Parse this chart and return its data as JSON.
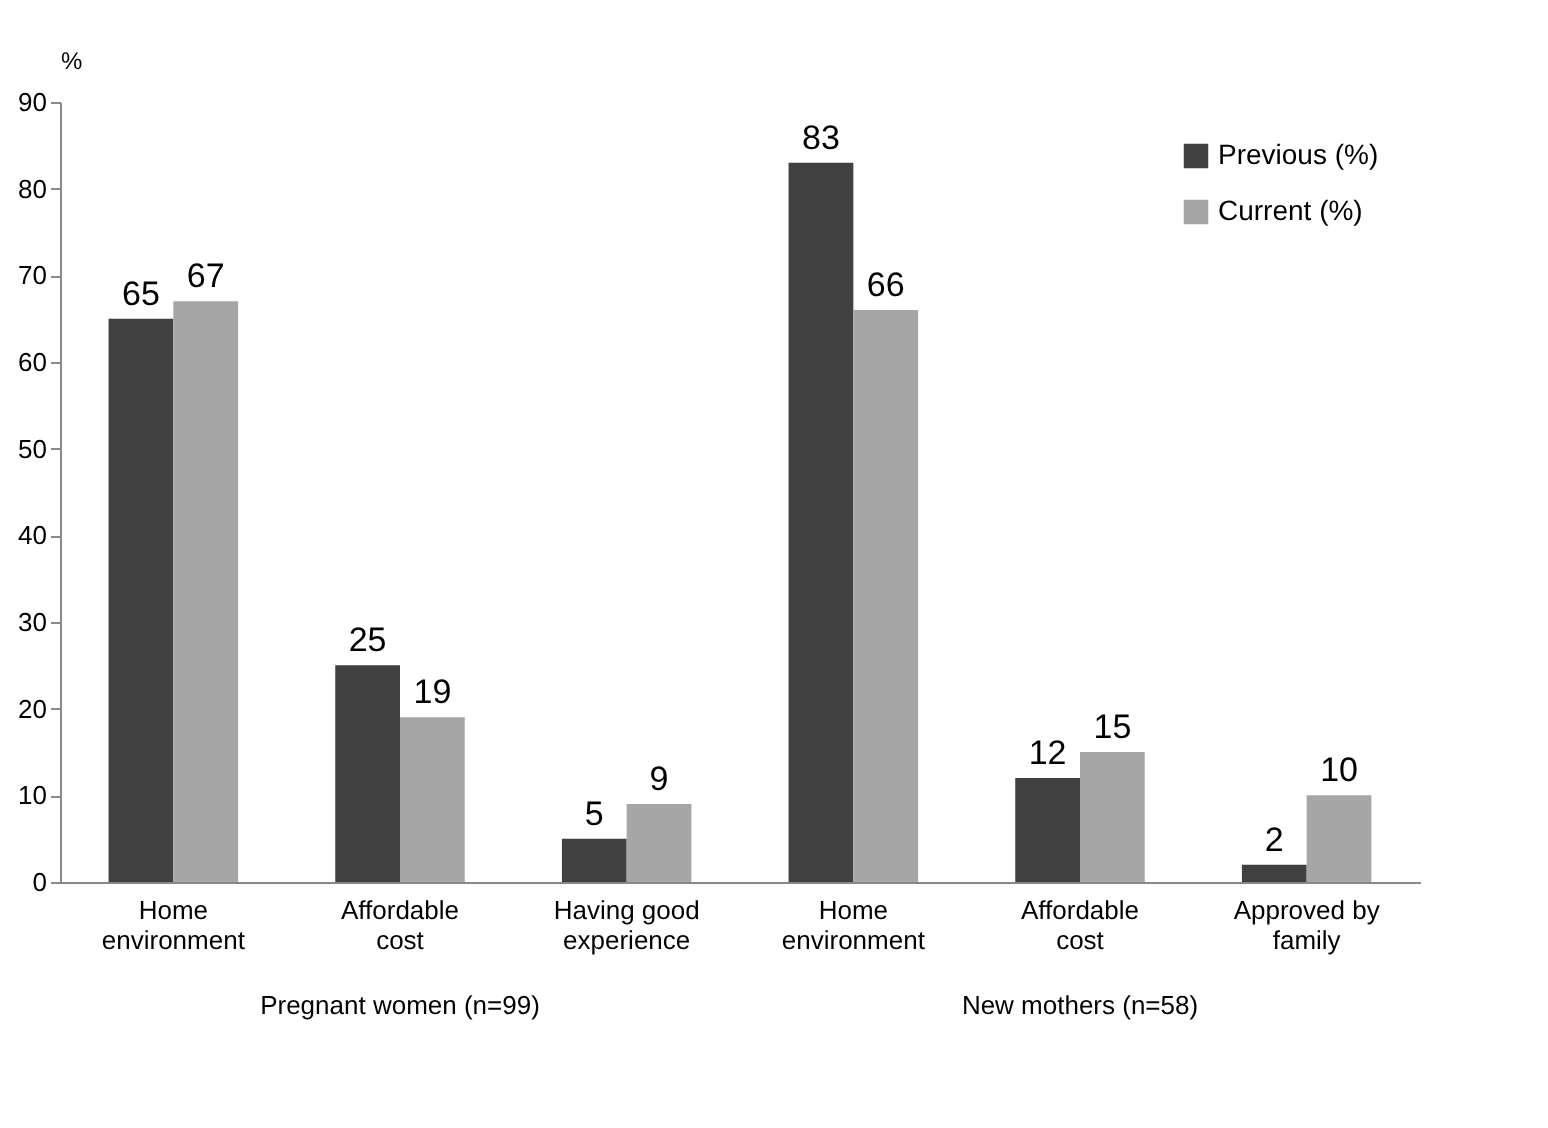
{
  "chart_data": {
    "type": "bar",
    "ylabel": "%",
    "categories": [
      "Home environment",
      "Affordable cost",
      "Having good experience",
      "Home environment",
      "Affordable cost",
      "Approved by family"
    ],
    "series": [
      {
        "name": "Previous (%)",
        "color": "#404040",
        "values": [
          65,
          25,
          5,
          83,
          12,
          2
        ]
      },
      {
        "name": "Current (%)",
        "color": "#a6a6a6",
        "values": [
          67,
          19,
          9,
          66,
          15,
          10
        ]
      }
    ],
    "ylim": [
      0,
      90
    ],
    "yticks": [
      0,
      10,
      20,
      30,
      40,
      50,
      60,
      70,
      80,
      90
    ],
    "grid": false,
    "legend": "top right",
    "data_labels": true,
    "annotations": [
      "Pregnant women (n=99)",
      "New mothers (n=58)"
    ]
  }
}
